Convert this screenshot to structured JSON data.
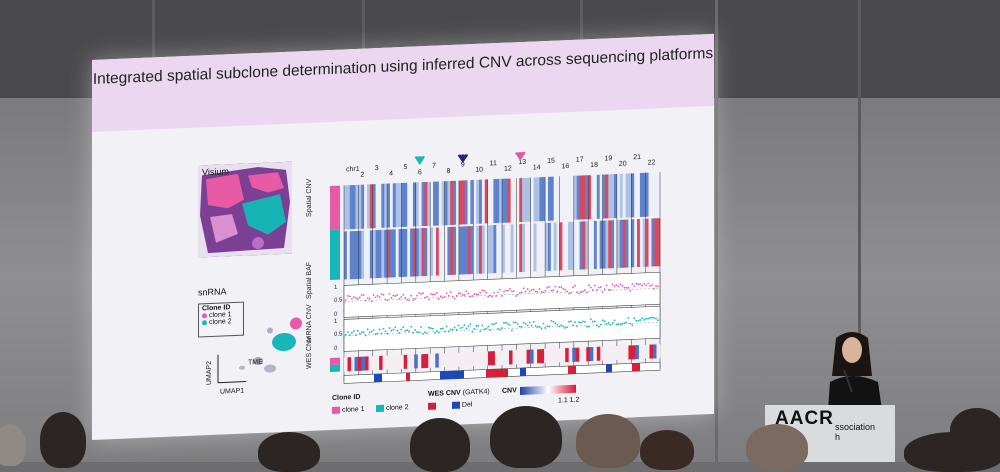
{
  "slide": {
    "title": "Integrated spatial subclone determination using inferred CNV across sequencing platforms",
    "visium_label": "Visium",
    "snrna_label": "snRNA",
    "clone_legend_title": "Clone ID",
    "clone_1": "clone 1",
    "clone_2": "clone 2",
    "tme_label": "TME",
    "umap1": "UMAP1",
    "umap2": "UMAP2",
    "chromosomes": [
      "chr1",
      "2",
      "3",
      "4",
      "5",
      "6",
      "7",
      "8",
      "9",
      "10",
      "11",
      "12",
      "13",
      "14",
      "15",
      "16",
      "17",
      "18",
      "19",
      "20",
      "21",
      "22"
    ],
    "row_labels": [
      "Spatial CNV",
      "Spatial BAF",
      "snRNA CNV",
      "WES CNV"
    ],
    "baf_ticks": [
      "1",
      "0.5",
      "0",
      "1",
      "0.5",
      "0"
    ],
    "legend": {
      "clone_id": "Clone ID",
      "clone1": "clone 1",
      "clone2": "clone 2",
      "wes_cnv": "WES CNV",
      "wes_tool": "(GATK4)",
      "del": "Del",
      "cnv": "CNV",
      "scale": "1.1 1.2"
    },
    "colors": {
      "clone1": "#e85aa6",
      "clone2": "#17b6b8",
      "arrow1": "#1fb7b5",
      "arrow2": "#1c2a7a",
      "arrow3": "#e8569c"
    }
  },
  "venue": {
    "logo": "AACR",
    "logo_sub_1": "ssociation",
    "logo_sub_2": "h"
  }
}
